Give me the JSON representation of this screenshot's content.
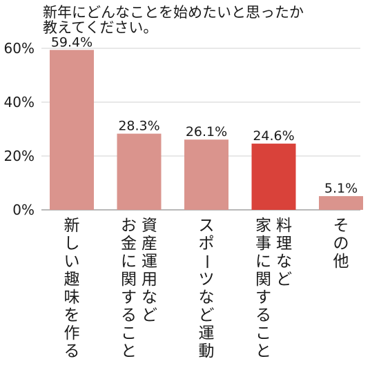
{
  "chart_data": {
    "type": "bar",
    "title_lines": [
      "新年にどんなことを始めたいと思ったか",
      "教えてください。"
    ],
    "categories": [
      [
        "新しい趣味を作る"
      ],
      [
        "資産運用など",
        "お金に関すること"
      ],
      [
        "スポーツなど運動"
      ],
      [
        "料理など",
        "家事に関すること"
      ],
      [
        "その他"
      ]
    ],
    "values": [
      59.4,
      28.3,
      26.1,
      24.6,
      5.1
    ],
    "value_labels": [
      "59.4%",
      "28.3%",
      "26.1%",
      "24.6%",
      "5.1%"
    ],
    "y_ticks": [
      0,
      20,
      40,
      60
    ],
    "y_tick_labels": [
      "0%",
      "20%",
      "40%",
      "60%"
    ],
    "ylim": [
      0,
      60
    ],
    "grid": true,
    "bar_color": "#da948d",
    "highlight_color": "#d9423a",
    "highlight_index": 3
  }
}
